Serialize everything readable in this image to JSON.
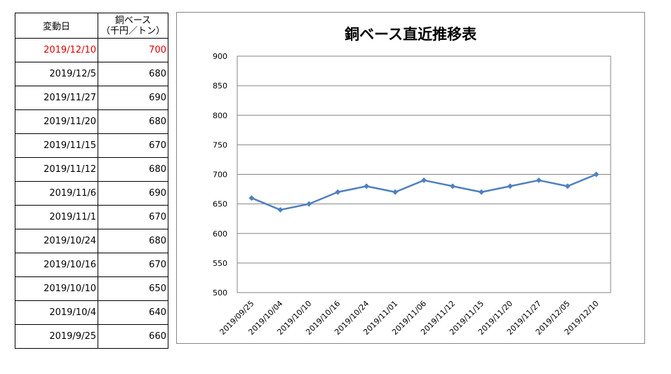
{
  "table": {
    "header_date": "変動日",
    "header_price_line1": "銅ベース",
    "header_price_line2": "（千円／トン）",
    "rows": [
      {
        "date": "2019/12/10",
        "price": "700"
      },
      {
        "date": "2019/12/5",
        "price": "680"
      },
      {
        "date": "2019/11/27",
        "price": "690"
      },
      {
        "date": "2019/11/20",
        "price": "680"
      },
      {
        "date": "2019/11/15",
        "price": "670"
      },
      {
        "date": "2019/11/12",
        "price": "680"
      },
      {
        "date": "2019/11/6",
        "price": "690"
      },
      {
        "date": "2019/11/1",
        "price": "670"
      },
      {
        "date": "2019/10/24",
        "price": "680"
      },
      {
        "date": "2019/10/16",
        "price": "670"
      },
      {
        "date": "2019/10/10",
        "price": "650"
      },
      {
        "date": "2019/10/4",
        "price": "640"
      },
      {
        "date": "2019/9/25",
        "price": "660"
      }
    ],
    "highlight_color": "#e00000"
  },
  "chart_data": {
    "type": "line",
    "title": "銅ベース直近推移表",
    "categories": [
      "2019/09/25",
      "2019/10/04",
      "2019/10/10",
      "2019/10/16",
      "2019/10/24",
      "2019/11/01",
      "2019/11/06",
      "2019/11/12",
      "2019/11/15",
      "2019/11/20",
      "2019/11/27",
      "2019/12/05",
      "2019/12/10"
    ],
    "series": [
      {
        "values": [
          660,
          640,
          650,
          670,
          680,
          670,
          690,
          680,
          670,
          680,
          690,
          680,
          700
        ]
      }
    ],
    "ylim": [
      500,
      900
    ],
    "yticks": [
      "500",
      "550",
      "600",
      "650",
      "700",
      "750",
      "800",
      "850",
      "900"
    ],
    "grid": true,
    "line_color": "#4f81bd",
    "gridline_color": "#868686"
  }
}
